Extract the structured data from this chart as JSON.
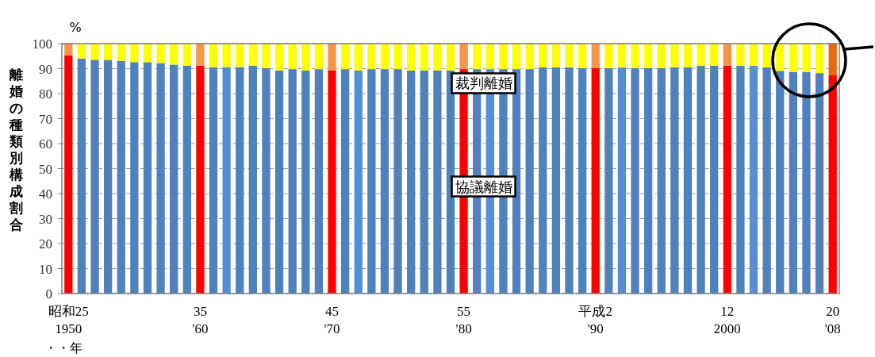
{
  "chart_data": {
    "type": "bar",
    "stacked": true,
    "ylabel": "離婚の種類別構成割合",
    "categories": [
      "昭和25\n1950",
      null,
      null,
      null,
      null,
      null,
      null,
      null,
      null,
      null,
      "35\n'60",
      null,
      null,
      null,
      null,
      null,
      null,
      null,
      null,
      null,
      "45\n'70",
      null,
      null,
      null,
      null,
      null,
      null,
      null,
      null,
      null,
      "55\n'80",
      null,
      null,
      null,
      null,
      null,
      null,
      null,
      null,
      null,
      "平成2\n'90",
      null,
      null,
      null,
      null,
      null,
      null,
      null,
      null,
      null,
      "12\n2000",
      null,
      null,
      null,
      null,
      null,
      null,
      null,
      "20\n'08"
    ],
    "series": [
      {
        "name": "協議離婚",
        "values": [
          95.4,
          94.0,
          93.5,
          93.5,
          93.1,
          92.6,
          92.6,
          92.2,
          91.6,
          91.2,
          91.2,
          90.6,
          90.6,
          90.6,
          91.2,
          90.2,
          89.2,
          89.8,
          89.2,
          89.8,
          89.2,
          89.8,
          89.2,
          89.8,
          89.8,
          89.8,
          89.2,
          89.2,
          89.2,
          89.2,
          89.8,
          89.8,
          89.8,
          89.8,
          89.8,
          89.8,
          90.5,
          90.5,
          90.5,
          90.2,
          90.2,
          90.2,
          90.5,
          90.2,
          90.2,
          90.2,
          90.5,
          90.5,
          91.1,
          91.1,
          91.1,
          91.1,
          91.1,
          90.5,
          89.1,
          88.7,
          88.7,
          88.2,
          87.3
        ],
        "colors": [
          "#ff0000",
          "#4f81bd",
          "#4f81bd",
          "#4f81bd",
          "#4f81bd",
          "#4f81bd",
          "#4f81bd",
          "#4f81bd",
          "#4f81bd",
          "#4f81bd",
          "#ff0000",
          "#4f81bd",
          "#558ed5",
          "#4f81bd",
          "#4f81bd",
          "#4f81bd",
          "#4f81bd",
          "#4f81bd",
          "#4f81bd",
          "#4f81bd",
          "#ff0000",
          "#4f81bd",
          "#558ed5",
          "#4f81bd",
          "#4f81bd",
          "#4f81bd",
          "#4f81bd",
          "#4f81bd",
          "#4f81bd",
          "#4f81bd",
          "#ff0000",
          "#4f81bd",
          "#558ed5",
          "#4f81bd",
          "#4f81bd",
          "#4f81bd",
          "#4f81bd",
          "#4f81bd",
          "#4f81bd",
          "#4f81bd",
          "#ff0000",
          "#4f81bd",
          "#558ed5",
          "#4f81bd",
          "#4f81bd",
          "#4f81bd",
          "#4f81bd",
          "#4f81bd",
          "#4f81bd",
          "#4f81bd",
          "#ff0000",
          "#4f81bd",
          "#558ed5",
          "#4f81bd",
          "#4f81bd",
          "#4f81bd",
          "#4f81bd",
          "#4f81bd",
          "#ff0000"
        ]
      },
      {
        "name": "裁判離婚",
        "values": [
          4.6,
          6.0,
          6.5,
          6.5,
          6.9,
          7.4,
          7.4,
          7.8,
          8.4,
          8.8,
          8.8,
          9.4,
          9.4,
          9.4,
          8.8,
          9.8,
          10.8,
          10.2,
          10.8,
          10.2,
          10.8,
          10.2,
          10.8,
          10.2,
          10.2,
          10.2,
          10.8,
          10.8,
          10.8,
          10.8,
          10.2,
          10.2,
          10.2,
          10.2,
          10.2,
          10.2,
          9.5,
          9.5,
          9.5,
          9.8,
          9.8,
          9.8,
          9.5,
          9.8,
          9.8,
          9.8,
          9.5,
          9.5,
          8.9,
          8.9,
          8.9,
          8.9,
          8.9,
          9.5,
          10.9,
          11.3,
          11.3,
          11.8,
          12.7
        ],
        "colors": [
          "#f79646",
          "#ffff00",
          "#ffff00",
          "#ffff00",
          "#ffff00",
          "#ffff00",
          "#ffff00",
          "#ffff00",
          "#ffff00",
          "#ffff00",
          "#f79646",
          "#ffff00",
          "#ffff00",
          "#ffff00",
          "#ffff00",
          "#ffff00",
          "#ffff00",
          "#ffff00",
          "#ffff00",
          "#ffff00",
          "#f79646",
          "#ffff00",
          "#ffff00",
          "#ffff00",
          "#ffff00",
          "#ffff00",
          "#ffff00",
          "#ffff00",
          "#ffff00",
          "#ffff00",
          "#f79646",
          "#ffff00",
          "#ffff00",
          "#ffff00",
          "#ffff00",
          "#ffff00",
          "#ffff00",
          "#ffff00",
          "#ffff00",
          "#ffff00",
          "#f79646",
          "#ffff00",
          "#ffff00",
          "#ffff00",
          "#ffff00",
          "#ffff00",
          "#ffff00",
          "#ffff00",
          "#ffff00",
          "#ffff00",
          "#f79646",
          "#ffff00",
          "#ffff00",
          "#ffff00",
          "#ffff00",
          "#ffff00",
          "#ffff00",
          "#ffff00",
          "#e46c0a"
        ]
      }
    ],
    "ylim": [
      0,
      100
    ],
    "yticks": [
      0,
      10,
      20,
      30,
      40,
      50,
      60,
      70,
      80,
      90,
      100
    ],
    "grid": "y",
    "legend": false,
    "annotations": [
      "%",
      "・・年"
    ]
  }
}
